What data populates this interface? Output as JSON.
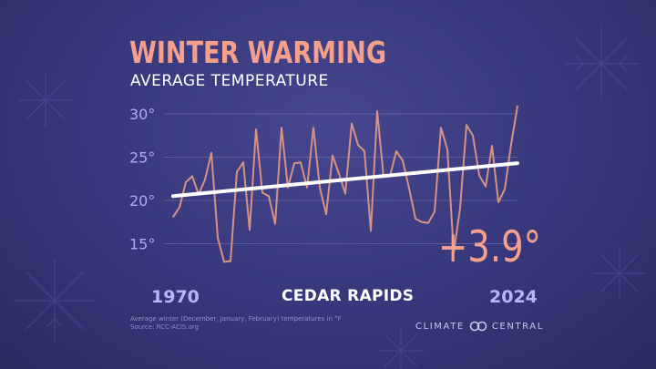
{
  "header": {
    "title": "WINTER WARMING",
    "subtitle": "AVERAGE TEMPERATURE"
  },
  "labels": {
    "start_year": "1970",
    "end_year": "2024",
    "city": "CEDAR RAPIDS",
    "change": "+3.9°"
  },
  "footnote": {
    "line1": "Average winter (December, January, February) temperatures in °F",
    "line2": "Source: RCC-ACIS.org"
  },
  "brand": {
    "left": "CLIMATE",
    "right": "CENTRAL"
  },
  "colors": {
    "background": "#36377a",
    "accent": "#f4a08d",
    "line": "#d69384",
    "trend": "#ffffff",
    "grid": "#7a7ab8",
    "tick": "#aeaef0"
  },
  "chart_data": {
    "type": "line",
    "title": "WINTER WARMING",
    "subtitle": "AVERAGE TEMPERATURE",
    "x": [
      1970,
      1971,
      1972,
      1973,
      1974,
      1975,
      1976,
      1977,
      1978,
      1979,
      1980,
      1981,
      1982,
      1983,
      1984,
      1985,
      1986,
      1987,
      1988,
      1989,
      1990,
      1991,
      1992,
      1993,
      1994,
      1995,
      1996,
      1997,
      1998,
      1999,
      2000,
      2001,
      2002,
      2003,
      2004,
      2005,
      2006,
      2007,
      2008,
      2009,
      2010,
      2011,
      2012,
      2013,
      2014,
      2015,
      2016,
      2017,
      2018,
      2019,
      2020,
      2021,
      2022,
      2023,
      2024
    ],
    "series": [
      {
        "values": [
          18.1,
          19.2,
          22.1,
          22.8,
          20.7,
          22.4,
          25.5,
          15.7,
          12.9,
          13.0,
          23.3,
          24.4,
          16.6,
          28.2,
          20.9,
          20.5,
          17.3,
          28.4,
          21.5,
          24.3,
          24.4,
          21.5,
          28.4,
          21.5,
          18.4,
          25.2,
          23.1,
          20.8,
          28.9,
          26.4,
          25.7,
          16.5,
          30.3,
          22.7,
          22.8,
          25.7,
          24.6,
          21.4,
          17.9,
          17.5,
          17.4,
          18.7,
          28.4,
          25.9,
          14.0,
          19.1,
          28.7,
          27.5,
          22.9,
          21.6,
          26.3,
          19.8,
          21.3,
          26.5,
          30.9
        ]
      }
    ],
    "trend": {
      "start": 20.5,
      "end": 24.3
    },
    "yticks": [
      15,
      20,
      25,
      30
    ],
    "ytick_labels": [
      "15°",
      "20°",
      "25°",
      "30°"
    ],
    "xlabel": "",
    "ylabel": "",
    "ylim": [
      15,
      30
    ],
    "grid": true,
    "unit": "°F"
  }
}
